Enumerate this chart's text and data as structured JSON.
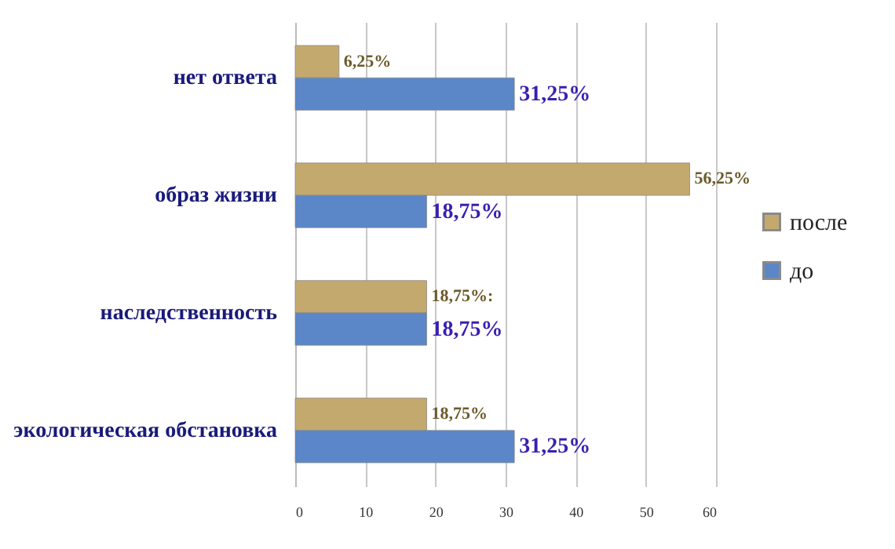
{
  "chart_data": {
    "type": "bar",
    "orientation": "horizontal",
    "categories": [
      "нет ответа",
      "образ жизни",
      "наследственность",
      "экологическая обстановка"
    ],
    "series": [
      {
        "name": "после",
        "color": "#c4a96e",
        "values": [
          6.25,
          56.25,
          18.75,
          18.75
        ],
        "value_labels": [
          "6,25%",
          "56,25%",
          "18,75%:",
          "18,75%"
        ]
      },
      {
        "name": "до",
        "color": "#5b86c8",
        "values": [
          31.25,
          18.75,
          18.75,
          31.25
        ],
        "value_labels": [
          "31,25%",
          "18,75%",
          "18,75%",
          "31,25%"
        ]
      }
    ],
    "xlim": [
      0,
      60
    ],
    "xticks": [
      0,
      10,
      20,
      30,
      40,
      50,
      60
    ],
    "grid": "x",
    "legend": "right"
  }
}
